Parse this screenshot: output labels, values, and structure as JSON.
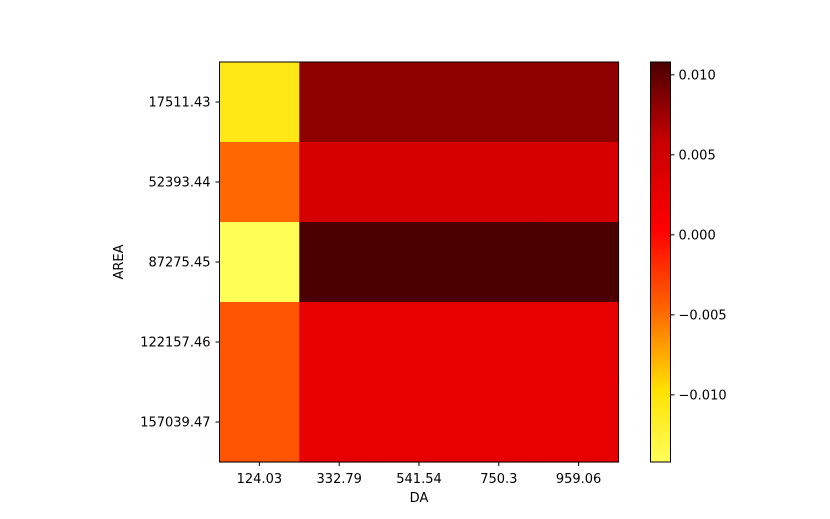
{
  "chart_data": {
    "type": "heatmap",
    "xlabel": "DA",
    "ylabel": "AREA",
    "x_ticks": [
      "124.03",
      "332.79",
      "541.54",
      "750.3",
      "959.06"
    ],
    "y_ticks": [
      "17511.43",
      "52393.44",
      "87275.45",
      "122157.46",
      "157039.47"
    ],
    "cells": [
      [
        -0.0108,
        0.0081,
        0.0081,
        0.0081,
        0.0081
      ],
      [
        -0.0048,
        0.0045,
        0.0045,
        0.0045,
        0.0045
      ],
      [
        -0.014,
        0.0108,
        0.0108,
        0.0108,
        0.0108
      ],
      [
        -0.0038,
        0.0028,
        0.0028,
        0.0028,
        0.0028
      ],
      [
        -0.0038,
        0.0028,
        0.0028,
        0.0028,
        0.0028
      ]
    ],
    "colormap": "hot_r",
    "colorbar": {
      "range": [
        -0.0142,
        0.0108
      ],
      "ticks": [
        0.01,
        0.005,
        0.0,
        -0.005,
        -0.01
      ],
      "tick_labels": [
        "0.010",
        "0.005",
        "0.000",
        "−0.005",
        "−0.010"
      ]
    },
    "grid": false
  }
}
